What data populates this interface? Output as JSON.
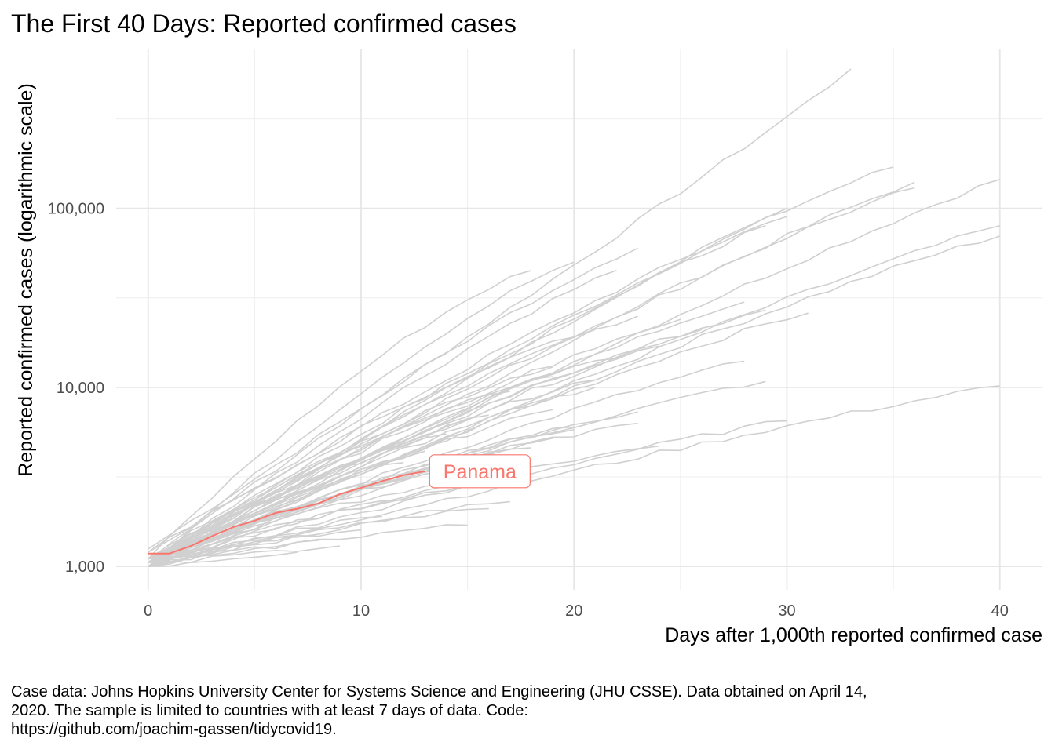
{
  "chart_data": {
    "type": "line",
    "title": "The First 40 Days: Reported confirmed cases",
    "xlabel": "Days after 1,000th reported confirmed case",
    "ylabel": "Reported confirmed cases (logarithmic scale)",
    "x_scale": "linear",
    "y_scale": "log10",
    "xlim": [
      -1.5,
      42
    ],
    "ylim": [
      740,
      780000
    ],
    "x_ticks": [
      0,
      10,
      20,
      30,
      40
    ],
    "x_tick_labels": [
      "0",
      "10",
      "20",
      "30",
      "40"
    ],
    "y_ticks": [
      1000,
      10000,
      100000
    ],
    "y_tick_labels": [
      "1,000",
      "10,000",
      "100,000"
    ],
    "grid": true,
    "legend": "none",
    "background_color": "#d0d0d0",
    "highlight_color": "#f8766d",
    "highlight": {
      "name": "Panama",
      "label": "Panama",
      "x": [
        0,
        1,
        2,
        3,
        4,
        5,
        6,
        7,
        8,
        9,
        10,
        11,
        12,
        13
      ],
      "y": [
        1180,
        1180,
        1300,
        1475,
        1660,
        1800,
        1990,
        2100,
        2250,
        2530,
        2750,
        3000,
        3230,
        3400
      ]
    },
    "background_series": [
      {
        "days": 33,
        "start": 1250,
        "end": 600000,
        "mid": 0.78,
        "curve": 1.05
      },
      {
        "days": 35,
        "start": 1100,
        "end": 170000,
        "mid": 0.6,
        "curve": 0.8
      },
      {
        "days": 36,
        "start": 1000,
        "end": 140000,
        "mid": 0.58,
        "curve": 0.85
      },
      {
        "days": 40,
        "start": 1100,
        "end": 145000,
        "mid": 0.55,
        "curve": 0.9
      },
      {
        "days": 40,
        "start": 1050,
        "end": 80000,
        "mid": 0.58,
        "curve": 0.85
      },
      {
        "days": 40,
        "start": 1000,
        "end": 70000,
        "mid": 0.55,
        "curve": 0.8
      },
      {
        "days": 36,
        "start": 1100,
        "end": 130000,
        "mid": 0.57,
        "curve": 0.8
      },
      {
        "days": 30,
        "start": 1200,
        "end": 90000,
        "mid": 0.62,
        "curve": 0.8
      },
      {
        "days": 30,
        "start": 1050,
        "end": 100000,
        "mid": 0.6,
        "curve": 0.9
      },
      {
        "days": 29,
        "start": 1000,
        "end": 80000,
        "mid": 0.6,
        "curve": 0.85
      },
      {
        "days": 23,
        "start": 1050,
        "end": 60000,
        "mid": 0.7,
        "curve": 0.8
      },
      {
        "days": 20,
        "start": 1000,
        "end": 50000,
        "mid": 0.72,
        "curve": 0.75
      },
      {
        "days": 18,
        "start": 1100,
        "end": 45000,
        "mid": 0.74,
        "curve": 0.7
      },
      {
        "days": 22,
        "start": 1000,
        "end": 45000,
        "mid": 0.68,
        "curve": 0.8
      },
      {
        "days": 31,
        "start": 1050,
        "end": 26000,
        "mid": 0.58,
        "curve": 0.8
      },
      {
        "days": 29,
        "start": 1000,
        "end": 27000,
        "mid": 0.62,
        "curve": 0.75
      },
      {
        "days": 28,
        "start": 1100,
        "end": 30000,
        "mid": 0.6,
        "curve": 0.8
      },
      {
        "days": 23,
        "start": 1050,
        "end": 25000,
        "mid": 0.66,
        "curve": 0.75
      },
      {
        "days": 24,
        "start": 1000,
        "end": 17000,
        "mid": 0.62,
        "curve": 0.7
      },
      {
        "days": 28,
        "start": 1050,
        "end": 14000,
        "mid": 0.58,
        "curve": 0.8
      },
      {
        "days": 21,
        "start": 1000,
        "end": 11000,
        "mid": 0.65,
        "curve": 0.7
      },
      {
        "days": 19,
        "start": 1050,
        "end": 13000,
        "mid": 0.68,
        "curve": 0.7
      },
      {
        "days": 40,
        "start": 1000,
        "end": 10200,
        "mid": 0.5,
        "curve": 0.85
      },
      {
        "days": 29,
        "start": 1100,
        "end": 10800,
        "mid": 0.6,
        "curve": 0.75
      },
      {
        "days": 30,
        "start": 1000,
        "end": 6500,
        "mid": 0.55,
        "curve": 0.8
      },
      {
        "days": 24,
        "start": 1050,
        "end": 4700,
        "mid": 0.55,
        "curve": 0.7
      },
      {
        "days": 23,
        "start": 1100,
        "end": 6300,
        "mid": 0.6,
        "curve": 0.7
      },
      {
        "days": 23,
        "start": 1000,
        "end": 7300,
        "mid": 0.62,
        "curve": 0.7
      },
      {
        "days": 20,
        "start": 1050,
        "end": 6000,
        "mid": 0.62,
        "curve": 0.7
      },
      {
        "days": 19,
        "start": 1000,
        "end": 5200,
        "mid": 0.6,
        "curve": 0.7
      },
      {
        "days": 19,
        "start": 1000,
        "end": 7500,
        "mid": 0.65,
        "curve": 0.75
      },
      {
        "days": 18,
        "start": 1050,
        "end": 3300,
        "mid": 0.55,
        "curve": 0.7
      },
      {
        "days": 17,
        "start": 1000,
        "end": 2300,
        "mid": 0.5,
        "curve": 0.7
      },
      {
        "days": 16,
        "start": 1050,
        "end": 2100,
        "mid": 0.5,
        "curve": 0.65
      },
      {
        "days": 15,
        "start": 1000,
        "end": 1700,
        "mid": 0.5,
        "curve": 0.6
      },
      {
        "days": 14,
        "start": 1100,
        "end": 2900,
        "mid": 0.6,
        "curve": 0.7
      },
      {
        "days": 14,
        "start": 1000,
        "end": 3600,
        "mid": 0.62,
        "curve": 0.7
      },
      {
        "days": 13,
        "start": 1000,
        "end": 2500,
        "mid": 0.58,
        "curve": 0.65
      },
      {
        "days": 12,
        "start": 1050,
        "end": 3000,
        "mid": 0.6,
        "curve": 0.7
      },
      {
        "days": 11,
        "start": 1000,
        "end": 1900,
        "mid": 0.55,
        "curve": 0.65
      },
      {
        "days": 10,
        "start": 1000,
        "end": 1600,
        "mid": 0.52,
        "curve": 0.6
      },
      {
        "days": 9,
        "start": 1000,
        "end": 1300,
        "mid": 0.52,
        "curve": 0.6
      },
      {
        "days": 8,
        "start": 1000,
        "end": 1400,
        "mid": 0.52,
        "curve": 0.6
      },
      {
        "days": 7,
        "start": 1000,
        "end": 1200,
        "mid": 0.5,
        "curve": 0.6
      },
      {
        "days": 7,
        "start": 1050,
        "end": 1500,
        "mid": 0.5,
        "curve": 0.6
      },
      {
        "days": 20,
        "start": 1000,
        "end": 5800,
        "mid": 0.62,
        "curve": 0.7
      },
      {
        "days": 18,
        "start": 1000,
        "end": 4600,
        "mid": 0.6,
        "curve": 0.7
      },
      {
        "days": 17,
        "start": 1050,
        "end": 4000,
        "mid": 0.58,
        "curve": 0.7
      },
      {
        "days": 21,
        "start": 1000,
        "end": 10000,
        "mid": 0.66,
        "curve": 0.72
      },
      {
        "days": 19,
        "start": 1100,
        "end": 11500,
        "mid": 0.68,
        "curve": 0.7
      },
      {
        "days": 26,
        "start": 1000,
        "end": 21000,
        "mid": 0.64,
        "curve": 0.75
      },
      {
        "days": 21,
        "start": 1200,
        "end": 21000,
        "mid": 0.7,
        "curve": 0.72
      },
      {
        "days": 23,
        "start": 1000,
        "end": 16000,
        "mid": 0.64,
        "curve": 0.7
      },
      {
        "days": 25,
        "start": 1050,
        "end": 24000,
        "mid": 0.64,
        "curve": 0.75
      },
      {
        "days": 17,
        "start": 1000,
        "end": 9500,
        "mid": 0.68,
        "curve": 0.7
      },
      {
        "days": 16,
        "start": 1050,
        "end": 7000,
        "mid": 0.66,
        "curve": 0.7
      },
      {
        "days": 14,
        "start": 1000,
        "end": 5500,
        "mid": 0.66,
        "curve": 0.68
      },
      {
        "days": 12,
        "start": 1100,
        "end": 3800,
        "mid": 0.64,
        "curve": 0.68
      },
      {
        "days": 13,
        "start": 1000,
        "end": 4400,
        "mid": 0.64,
        "curve": 0.68
      }
    ]
  },
  "caption_lines": [
    "Case data: Johns Hopkins University Center for Systems Science and Engineering (JHU CSSE). Data obtained on April 14,",
    "2020. The sample is limited to countries with at least 7 days of data. Code:",
    "https://github.com/joachim-gassen/tidycovid19."
  ]
}
